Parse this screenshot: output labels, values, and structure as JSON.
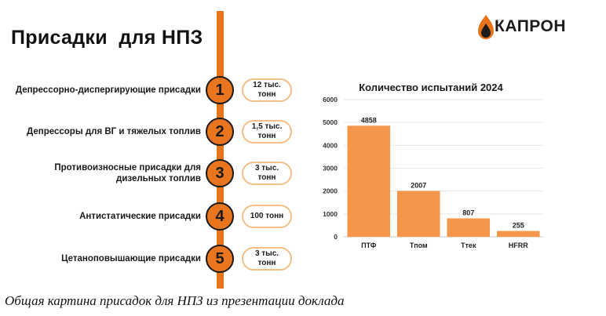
{
  "title": "Присадки  для НПЗ",
  "logo": {
    "text": "КАПРОН",
    "icon": "flame-drop-icon"
  },
  "accent_color": "#e9761f",
  "additives": [
    {
      "number": "1",
      "label": "Депрессорно-диспергирующие присадки",
      "volume_line1": "12 тыс.",
      "volume_line2": "тонн"
    },
    {
      "number": "2",
      "label": "Депрессоры для ВГ и тяжелых топлив",
      "volume_line1": "1,5 тыс.",
      "volume_line2": "тонн"
    },
    {
      "number": "3",
      "label": "Противоизносные присадки для дизельных топлив",
      "volume_line1": "3 тыс.",
      "volume_line2": "тонн"
    },
    {
      "number": "4",
      "label": "Антистатические присадки",
      "volume_line1": "100 тонн",
      "volume_line2": ""
    },
    {
      "number": "5",
      "label": "Цетаноповышающие присадки",
      "volume_line1": "3 тыс.",
      "volume_line2": "тонн"
    }
  ],
  "chart_data": {
    "type": "bar",
    "title": "Количество испытаний 2024",
    "categories": [
      "ПТФ",
      "Тпом",
      "Ттек",
      "HFRR"
    ],
    "values": [
      4858,
      2007,
      807,
      255
    ],
    "data_labels": [
      "4858",
      "2007",
      "807",
      "255"
    ],
    "ylim": [
      0,
      6000
    ],
    "yticks": [
      0,
      1000,
      2000,
      3000,
      4000,
      5000,
      6000
    ],
    "grid": true,
    "bar_color": "#f4974a"
  },
  "caption": "Общая картина присадок для НПЗ из презентации доклада"
}
